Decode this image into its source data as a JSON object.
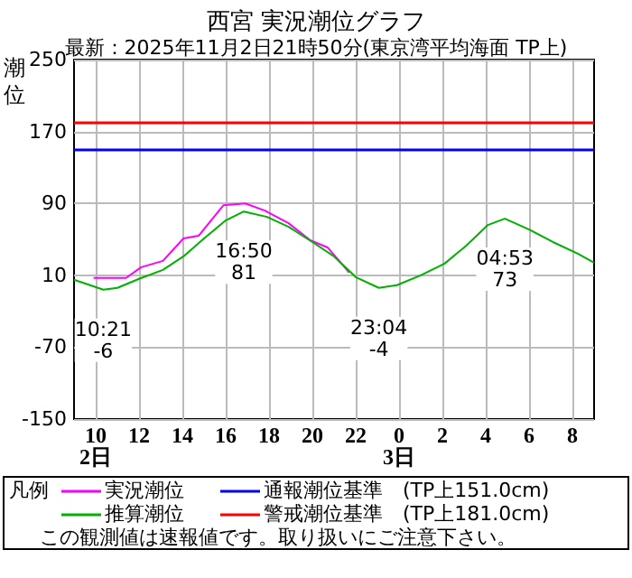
{
  "chart_data": {
    "type": "line",
    "title": "西宮 実況潮位グラフ",
    "subtitle": "最新：2025年11月2日21時50分(東京湾平均海面 TP上)",
    "ylabel": "潮位",
    "legend_title": "凡例",
    "xlim": [
      "2025-11-02T09:00",
      "2025-11-03T09:00"
    ],
    "xticks": [
      {
        "value": "2025-11-02T10:00",
        "label": "10\n2日"
      },
      {
        "value": "2025-11-02T12:00",
        "label": "12"
      },
      {
        "value": "2025-11-02T14:00",
        "label": "14"
      },
      {
        "value": "2025-11-02T16:00",
        "label": "16"
      },
      {
        "value": "2025-11-02T18:00",
        "label": "18"
      },
      {
        "value": "2025-11-02T20:00",
        "label": "20"
      },
      {
        "value": "2025-11-02T22:00",
        "label": "22"
      },
      {
        "value": "2025-11-03T00:00",
        "label": "0\n3日"
      },
      {
        "value": "2025-11-03T02:00",
        "label": "2"
      },
      {
        "value": "2025-11-03T04:00",
        "label": "4"
      },
      {
        "value": "2025-11-03T06:00",
        "label": "6"
      },
      {
        "value": "2025-11-03T08:00",
        "label": "8"
      }
    ],
    "ylim": [
      -150,
      250
    ],
    "yticks": [
      -150,
      -70,
      10,
      90,
      170,
      250
    ],
    "grid": true,
    "legend": "bottom",
    "marker": "none",
    "line_style": "solid",
    "series": [
      {
        "name": "実況潮位",
        "color": "#ff00ff",
        "x": [
          "2025-11-02T09:54",
          "2025-11-02T11:24",
          "2025-11-02T12:06",
          "2025-11-02T13:06",
          "2025-11-02T14:03",
          "2025-11-02T14:45",
          "2025-11-02T15:54",
          "2025-11-02T16:54",
          "2025-11-02T17:48",
          "2025-11-02T18:54",
          "2025-11-02T19:54",
          "2025-11-02T20:42",
          "2025-11-02T21:42"
        ],
        "values": [
          7,
          7,
          19,
          26,
          51,
          54,
          88,
          90,
          82,
          68,
          49,
          41,
          13
        ]
      },
      {
        "name": "推算潮位",
        "color": "#00b000",
        "x": [
          "2025-11-02T09:00",
          "2025-11-02T10:21",
          "2025-11-02T11:00",
          "2025-11-02T12:00",
          "2025-11-02T13:06",
          "2025-11-02T14:03",
          "2025-11-02T15:00",
          "2025-11-02T16:00",
          "2025-11-02T16:50",
          "2025-11-02T17:54",
          "2025-11-02T18:54",
          "2025-11-02T20:00",
          "2025-11-02T21:00",
          "2025-11-02T22:00",
          "2025-11-02T23:04",
          "2025-11-02T23:54",
          "2025-11-03T01:00",
          "2025-11-03T02:06",
          "2025-11-03T03:06",
          "2025-11-03T04:06",
          "2025-11-03T04:53",
          "2025-11-03T06:00",
          "2025-11-03T07:06",
          "2025-11-03T08:15",
          "2025-11-03T09:00"
        ],
        "values": [
          5,
          -6,
          -4,
          6,
          16,
          31,
          51,
          71,
          81,
          75,
          64,
          47,
          31,
          8,
          -4,
          -1,
          10,
          23,
          43,
          66,
          73,
          61,
          47,
          34,
          24
        ]
      }
    ],
    "ref_lines": [
      {
        "axis": "y",
        "value": 151,
        "label": "通報潮位基準　(TP上151.0cm)",
        "color": "#0000ff"
      },
      {
        "axis": "y",
        "value": 181,
        "label": "警戒潮位基準　(TP上181.0cm)",
        "color": "#ff0000"
      }
    ],
    "annotations": [
      {
        "text": "10:21\n-6",
        "x": "2025-11-02T10:21",
        "y": -6
      },
      {
        "text": "16:50\n81",
        "x": "2025-11-02T16:50",
        "y": 81
      },
      {
        "text": "23:04\n-4",
        "x": "2025-11-02T23:04",
        "y": -4
      },
      {
        "text": "04:53\n73",
        "x": "2025-11-03T04:53",
        "y": 73
      },
      "この観測値は速報値です。取り扱いにご注意下さい。"
    ]
  }
}
